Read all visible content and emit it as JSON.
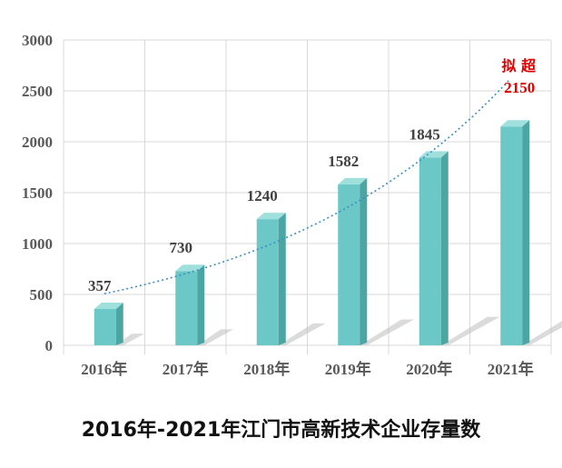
{
  "caption": "2016年-2021年江门市高新技术企业存量数",
  "chart_data": {
    "type": "bar",
    "categories": [
      "2016年",
      "2017年",
      "2018年",
      "2019年",
      "2020年",
      "2021年"
    ],
    "values": [
      357,
      730,
      1240,
      1582,
      1845,
      2150
    ],
    "data_labels": [
      "357",
      "730",
      "1240",
      "1582",
      "1845",
      "2150"
    ],
    "value_label_prefix_last": "拟 超",
    "ylim": [
      0,
      3000
    ],
    "yticks": [
      0,
      500,
      1000,
      1500,
      2000,
      2500,
      3000
    ],
    "grid": true,
    "trendline": "dotted exponential",
    "colors": {
      "bar_front": "#6cc8c6",
      "bar_side": "#4aa5a3",
      "bar_top": "#9fe0dd",
      "trend": "#3a8fc6",
      "highlight": "#e00000",
      "grid": "#d9d9d9"
    }
  }
}
